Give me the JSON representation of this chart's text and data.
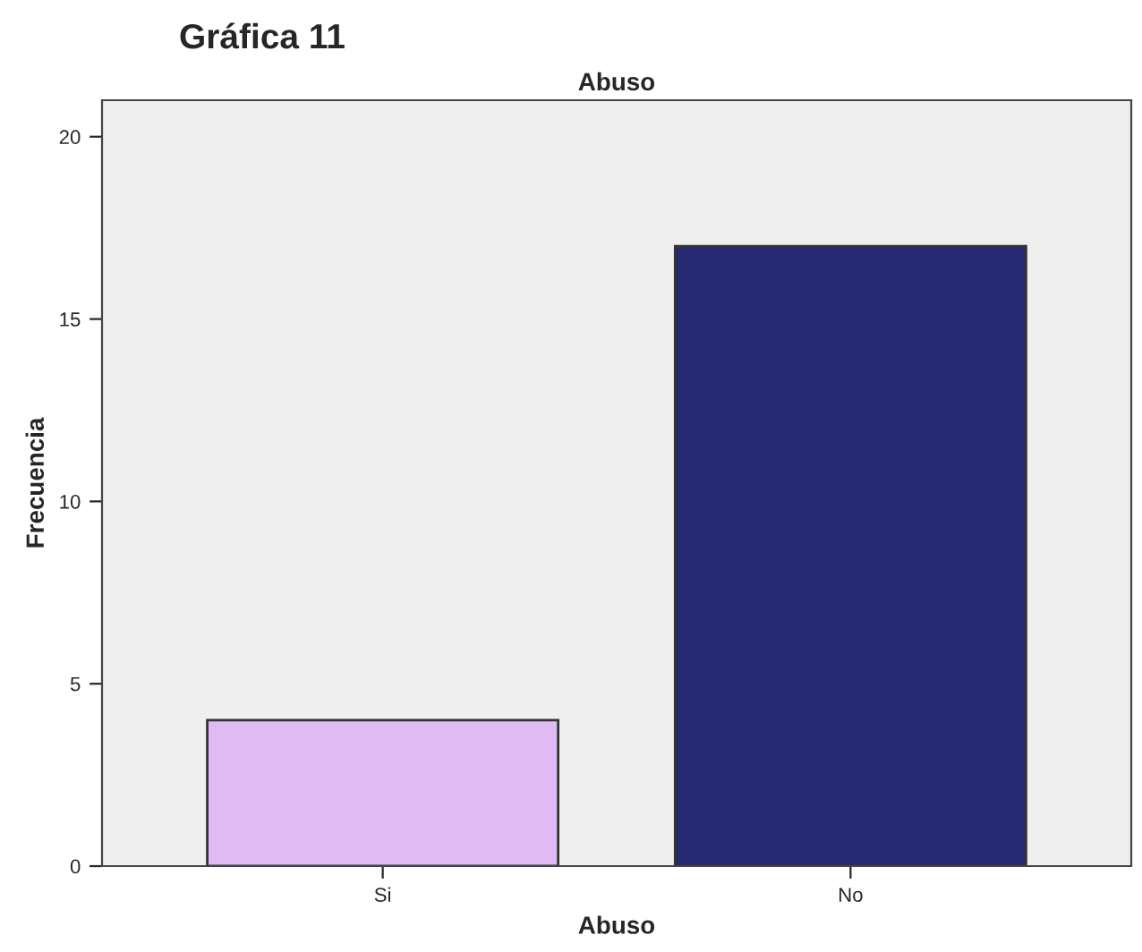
{
  "chart_data": {
    "type": "bar",
    "title": "Gráfica 11",
    "subtitle": "Abuso",
    "xlabel": "Abuso",
    "ylabel": "Frecuencia",
    "categories": [
      "Si",
      "No"
    ],
    "values": [
      4,
      17
    ],
    "colors": [
      "#dfbaf3",
      "#272a73"
    ],
    "ylim": [
      0,
      21
    ],
    "yticks": [
      0,
      5,
      10,
      15,
      20
    ],
    "grid": false
  }
}
